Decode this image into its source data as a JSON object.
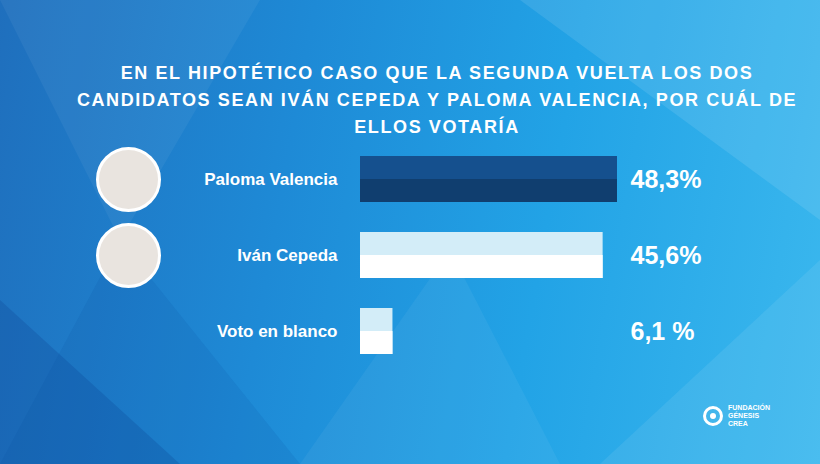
{
  "chart_data": {
    "type": "bar",
    "orientation": "horizontal",
    "title": "EN EL HIPOTÉTICO CASO QUE LA SEGUNDA VUELTA LOS DOS CANDIDATOS SEAN IVÁN CEPEDA Y PALOMA VALENCIA, POR CUÁL DE ELLOS VOTARÍA",
    "categories": [
      "Paloma Valencia",
      "Iván Cepeda",
      "Voto en blanco"
    ],
    "values": [
      48.3,
      45.6,
      6.1
    ],
    "value_labels": [
      "48,3%",
      "45,6%",
      "6,1 %"
    ],
    "colors": [
      "#15508e",
      "#d3edf8",
      "#d3edf8"
    ],
    "xlim": [
      0,
      48.3
    ],
    "data_labels": true,
    "tick_labels": "y",
    "grid": false,
    "annotations": [
      "FUNDACIÓN",
      "GÉNESIS",
      "CREA"
    ]
  }
}
